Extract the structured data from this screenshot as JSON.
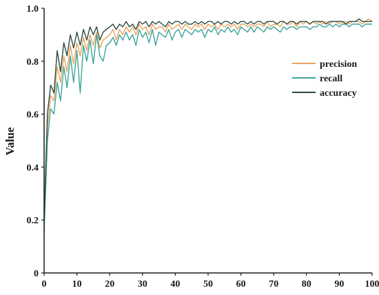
{
  "chart_data": {
    "type": "line",
    "title": "",
    "xlabel": "",
    "ylabel": "Value",
    "xlim": [
      0,
      100
    ],
    "ylim": [
      0,
      1.0
    ],
    "xticks": [
      "0",
      "10",
      "20",
      "30",
      "40",
      "50",
      "60",
      "70",
      "80",
      "90",
      "100"
    ],
    "yticks": [
      "0",
      "0.2",
      "0.4",
      "0.6",
      "0.8",
      "1.0"
    ],
    "legend_position": "right",
    "grid": false,
    "x": [
      0,
      1,
      2,
      3,
      4,
      5,
      6,
      7,
      8,
      9,
      10,
      11,
      12,
      13,
      14,
      15,
      16,
      17,
      18,
      19,
      20,
      21,
      22,
      23,
      24,
      25,
      26,
      27,
      28,
      29,
      30,
      31,
      32,
      33,
      34,
      35,
      36,
      37,
      38,
      39,
      40,
      41,
      42,
      43,
      44,
      45,
      46,
      47,
      48,
      49,
      50,
      51,
      52,
      53,
      54,
      55,
      56,
      57,
      58,
      59,
      60,
      61,
      62,
      63,
      64,
      65,
      66,
      67,
      68,
      69,
      70,
      71,
      72,
      73,
      74,
      75,
      76,
      77,
      78,
      79,
      80,
      81,
      82,
      83,
      84,
      85,
      86,
      87,
      88,
      89,
      90,
      91,
      92,
      93,
      94,
      95,
      96,
      97,
      98,
      99,
      100
    ],
    "series": [
      {
        "name": "precision",
        "color": "#e8a45c",
        "values": [
          0.18,
          0.55,
          0.67,
          0.65,
          0.78,
          0.72,
          0.82,
          0.76,
          0.86,
          0.79,
          0.87,
          0.82,
          0.89,
          0.84,
          0.9,
          0.86,
          0.91,
          0.85,
          0.88,
          0.89,
          0.9,
          0.92,
          0.88,
          0.92,
          0.9,
          0.93,
          0.91,
          0.93,
          0.9,
          0.94,
          0.92,
          0.93,
          0.9,
          0.94,
          0.92,
          0.93,
          0.93,
          0.91,
          0.94,
          0.92,
          0.93,
          0.94,
          0.92,
          0.94,
          0.93,
          0.92,
          0.94,
          0.93,
          0.94,
          0.92,
          0.94,
          0.93,
          0.94,
          0.92,
          0.94,
          0.93,
          0.94,
          0.93,
          0.94,
          0.92,
          0.94,
          0.94,
          0.93,
          0.94,
          0.93,
          0.94,
          0.94,
          0.93,
          0.95,
          0.93,
          0.94,
          0.94,
          0.93,
          0.95,
          0.94,
          0.94,
          0.95,
          0.93,
          0.95,
          0.94,
          0.95,
          0.94,
          0.95,
          0.94,
          0.95,
          0.94,
          0.95,
          0.94,
          0.95,
          0.95,
          0.94,
          0.95,
          0.95,
          0.94,
          0.95,
          0.95,
          0.95,
          0.94,
          0.95,
          0.96,
          0.95
        ]
      },
      {
        "name": "recall",
        "color": "#3aa39a",
        "values": [
          0.15,
          0.5,
          0.62,
          0.6,
          0.72,
          0.65,
          0.78,
          0.7,
          0.82,
          0.72,
          0.84,
          0.68,
          0.86,
          0.8,
          0.88,
          0.79,
          0.9,
          0.82,
          0.8,
          0.86,
          0.87,
          0.89,
          0.86,
          0.9,
          0.88,
          0.91,
          0.88,
          0.9,
          0.86,
          0.92,
          0.89,
          0.91,
          0.87,
          0.92,
          0.86,
          0.91,
          0.9,
          0.89,
          0.92,
          0.88,
          0.91,
          0.92,
          0.89,
          0.92,
          0.91,
          0.9,
          0.92,
          0.91,
          0.92,
          0.89,
          0.92,
          0.91,
          0.93,
          0.9,
          0.92,
          0.91,
          0.93,
          0.91,
          0.92,
          0.9,
          0.93,
          0.92,
          0.91,
          0.93,
          0.91,
          0.93,
          0.92,
          0.91,
          0.93,
          0.92,
          0.93,
          0.92,
          0.91,
          0.93,
          0.92,
          0.93,
          0.93,
          0.92,
          0.93,
          0.93,
          0.93,
          0.92,
          0.93,
          0.93,
          0.94,
          0.93,
          0.93,
          0.94,
          0.93,
          0.94,
          0.93,
          0.94,
          0.94,
          0.93,
          0.94,
          0.94,
          0.94,
          0.93,
          0.94,
          0.94,
          0.94
        ]
      },
      {
        "name": "accuracy",
        "color": "#2a4a3e",
        "values": [
          0.2,
          0.6,
          0.71,
          0.68,
          0.84,
          0.76,
          0.87,
          0.82,
          0.9,
          0.85,
          0.91,
          0.86,
          0.92,
          0.88,
          0.93,
          0.9,
          0.93,
          0.88,
          0.91,
          0.92,
          0.93,
          0.94,
          0.92,
          0.94,
          0.93,
          0.95,
          0.93,
          0.94,
          0.92,
          0.95,
          0.94,
          0.95,
          0.93,
          0.95,
          0.94,
          0.95,
          0.94,
          0.93,
          0.95,
          0.94,
          0.95,
          0.95,
          0.94,
          0.95,
          0.94,
          0.94,
          0.95,
          0.94,
          0.95,
          0.94,
          0.95,
          0.95,
          0.94,
          0.95,
          0.94,
          0.95,
          0.95,
          0.94,
          0.95,
          0.94,
          0.95,
          0.95,
          0.94,
          0.95,
          0.94,
          0.95,
          0.95,
          0.94,
          0.95,
          0.95,
          0.95,
          0.94,
          0.95,
          0.95,
          0.94,
          0.95,
          0.95,
          0.94,
          0.95,
          0.95,
          0.95,
          0.94,
          0.95,
          0.95,
          0.95,
          0.95,
          0.94,
          0.95,
          0.95,
          0.95,
          0.95,
          0.95,
          0.94,
          0.95,
          0.95,
          0.95,
          0.96,
          0.95,
          0.95,
          0.95,
          0.95
        ]
      }
    ]
  }
}
